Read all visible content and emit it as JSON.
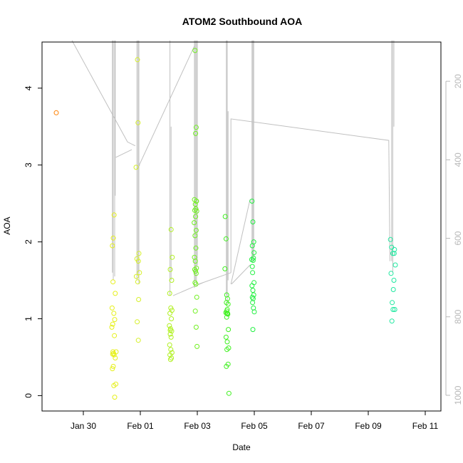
{
  "chart_data": {
    "type": "scatter",
    "title": "ATOM2 Southbound AOA",
    "xlabel": "Date",
    "ylabel": "AOA",
    "x_tick_labels": [
      "Jan 30",
      "Feb 01",
      "Feb 03",
      "Feb 05",
      "Feb 07",
      "Feb 09",
      "Feb 11"
    ],
    "x_ticks_days": [
      0,
      2,
      4,
      6,
      8,
      10,
      12
    ],
    "xlim_days": [
      -1.45,
      12.55
    ],
    "y_ticks": [
      0,
      1,
      2,
      3,
      4
    ],
    "ylim": [
      -0.2,
      4.6
    ],
    "right_axis_ticks": [
      200,
      400,
      600,
      800,
      1000
    ],
    "right_axis_range": [
      100,
      1040
    ],
    "right_axis_color": "#b8b8b8",
    "line_color": "#c0c0c0",
    "point_groups": [
      {
        "color": "#ff8000",
        "x": [
          -0.95
        ],
        "y": [
          3.68
        ]
      },
      {
        "color": "#e6f01a",
        "x": [
          1.05,
          1.02,
          1.08,
          1.04,
          1.12,
          1.01,
          1.07,
          1.1,
          1.03,
          1.0,
          1.09,
          1.15,
          1.06,
          1.03,
          1.08,
          1.12,
          1.05,
          1.02,
          1.14,
          1.07,
          1.1,
          1.04
        ],
        "y": [
          2.05,
          1.95,
          2.35,
          1.48,
          1.33,
          1.14,
          1.07,
          0.99,
          0.93,
          0.89,
          0.78,
          0.57,
          0.55,
          0.54,
          0.53,
          0.49,
          0.38,
          0.35,
          0.15,
          0.13,
          -0.02,
          0.57
        ]
      },
      {
        "color": "#d6f02a",
        "x": [
          1.9,
          1.92,
          1.85,
          1.95,
          1.88,
          1.93,
          1.97,
          1.86,
          1.91,
          1.94,
          1.89,
          1.93
        ],
        "y": [
          4.37,
          3.55,
          2.97,
          1.85,
          1.78,
          1.75,
          1.6,
          1.55,
          1.48,
          1.25,
          0.96,
          0.72
        ]
      },
      {
        "color": "#b0f020",
        "x": [
          3.08,
          3.12,
          3.05,
          3.1,
          3.03,
          3.07,
          3.11,
          3.04,
          3.09,
          3.02,
          3.06,
          3.1,
          3.05,
          3.08,
          3.03,
          3.07,
          3.11,
          3.04,
          3.09,
          3.06,
          3.05
        ],
        "y": [
          2.16,
          1.8,
          1.64,
          1.5,
          1.33,
          1.14,
          1.11,
          1.07,
          1.0,
          0.91,
          0.87,
          0.84,
          0.8,
          0.76,
          0.66,
          0.6,
          0.56,
          0.53,
          0.49,
          0.47,
          0.85
        ]
      },
      {
        "color": "#70f020",
        "x": [
          3.92,
          3.96,
          3.94,
          3.9,
          3.97,
          3.93,
          3.95,
          3.91,
          3.98,
          3.94,
          3.89,
          3.96,
          3.92,
          3.95,
          3.9,
          3.93,
          3.97,
          3.91,
          3.94,
          3.96,
          3.92,
          3.95,
          3.98,
          3.93,
          3.96,
          3.99,
          3.97
        ],
        "y": [
          4.49,
          3.49,
          3.41,
          2.55,
          2.53,
          2.49,
          2.43,
          2.41,
          2.4,
          2.33,
          2.25,
          2.15,
          2.08,
          1.92,
          1.8,
          1.75,
          1.66,
          1.64,
          1.62,
          1.59,
          1.47,
          1.45,
          1.28,
          1.1,
          0.89,
          0.64,
          2.53
        ]
      },
      {
        "color": "#40f020",
        "x": [
          4.98,
          5.01,
          4.97,
          5.03,
          5.06,
          5.02,
          5.08,
          5.05,
          5.0,
          5.04,
          5.07,
          5.03,
          5.09,
          5.01,
          5.05,
          5.1,
          5.04,
          5.08,
          5.02,
          5.11,
          5.06,
          5.03
        ],
        "y": [
          2.33,
          2.04,
          1.65,
          1.31,
          1.26,
          1.21,
          1.19,
          1.12,
          1.08,
          1.07,
          1.06,
          1.02,
          0.86,
          0.76,
          0.7,
          0.62,
          0.6,
          0.41,
          0.38,
          0.03,
          1.07,
          1.1
        ]
      },
      {
        "color": "#20f040",
        "x": [
          5.92,
          5.95,
          5.98,
          5.93,
          5.97,
          5.91,
          5.96,
          5.94,
          5.99,
          5.92,
          5.95,
          5.98,
          5.93,
          5.96,
          5.94,
          5.97,
          6.0,
          5.95,
          5.99,
          5.93
        ],
        "y": [
          2.53,
          2.26,
          2.0,
          1.95,
          1.79,
          1.77,
          1.76,
          1.6,
          1.47,
          1.43,
          1.37,
          1.31,
          1.28,
          1.26,
          1.21,
          1.14,
          1.09,
          0.86,
          1.86,
          1.68
        ]
      },
      {
        "color": "#20e8a0",
        "x": [
          10.78,
          10.82,
          10.92,
          10.86,
          10.95,
          10.8,
          10.9,
          10.88,
          10.84,
          10.93,
          10.87,
          10.83,
          10.91
        ],
        "y": [
          2.03,
          1.93,
          1.9,
          1.85,
          1.7,
          1.59,
          1.5,
          1.38,
          1.21,
          1.12,
          1.12,
          0.97,
          1.85
        ]
      }
    ]
  }
}
